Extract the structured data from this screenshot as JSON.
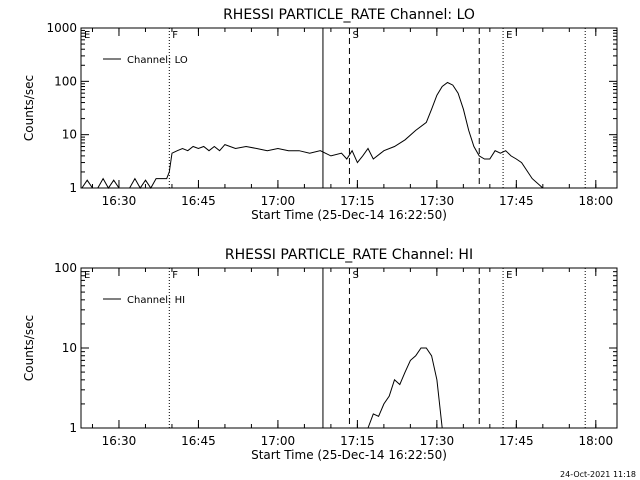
{
  "chart_data": [
    {
      "type": "line",
      "title": "RHESSI PARTICLE_RATE Channel: LO",
      "xlabel": "Start Time (25-Dec-14 16:22:50)",
      "ylabel": "Counts/sec",
      "yscale": "log",
      "ylim": [
        1,
        1000
      ],
      "xlim": [
        "16:22:50",
        "18:04:00"
      ],
      "xticks": [
        "16:30",
        "16:45",
        "17:00",
        "17:15",
        "17:30",
        "17:45",
        "18:00"
      ],
      "yticks": [
        "1",
        "10",
        "100",
        "1000"
      ],
      "legend": {
        "entries": [
          "Channel: LO"
        ],
        "placement": "top-left"
      },
      "markers": [
        {
          "label": "E",
          "time": "16:22:50",
          "style": "dotted"
        },
        {
          "label": "F",
          "time": "16:39:30",
          "style": "dotted"
        },
        {
          "label": "",
          "time": "17:08:30",
          "style": "solid"
        },
        {
          "label": "S",
          "time": "17:13:30",
          "style": "dashed"
        },
        {
          "label": "",
          "time": "17:38:00",
          "style": "dashed"
        },
        {
          "label": "E",
          "time": "17:42:30",
          "style": "dotted"
        },
        {
          "label": "",
          "time": "17:58:00",
          "style": "dotted"
        }
      ],
      "series": [
        {
          "name": "Channel: LO",
          "x": [
            "16:23:00",
            "16:24:00",
            "16:25:00",
            "16:26:00",
            "16:27:00",
            "16:28:00",
            "16:29:00",
            "16:30:00",
            "16:31:00",
            "16:32:00",
            "16:33:00",
            "16:34:00",
            "16:35:00",
            "16:36:00",
            "16:37:00",
            "16:38:00",
            "16:39:00",
            "16:39:30",
            "16:40:00",
            "16:41:00",
            "16:42:00",
            "16:43:00",
            "16:44:00",
            "16:45:00",
            "16:46:00",
            "16:47:00",
            "16:48:00",
            "16:49:00",
            "16:50:00",
            "16:52:00",
            "16:54:00",
            "16:56:00",
            "16:58:00",
            "17:00:00",
            "17:02:00",
            "17:04:00",
            "17:06:00",
            "17:08:00",
            "17:10:00",
            "17:12:00",
            "17:13:00",
            "17:14:00",
            "17:15:00",
            "17:16:00",
            "17:17:00",
            "17:18:00",
            "17:20:00",
            "17:22:00",
            "17:24:00",
            "17:26:00",
            "17:28:00",
            "17:29:00",
            "17:30:00",
            "17:31:00",
            "17:32:00",
            "17:33:00",
            "17:34:00",
            "17:35:00",
            "17:36:00",
            "17:37:00",
            "17:38:00",
            "17:39:00",
            "17:40:00",
            "17:41:00",
            "17:42:00",
            "17:43:00",
            "17:44:00",
            "17:45:00",
            "17:46:00",
            "17:48:00",
            "17:50:00",
            "17:52:00",
            "17:54:00",
            "17:56:00"
          ],
          "values": [
            1,
            1.4,
            1,
            1,
            1.5,
            1,
            1.4,
            1,
            1,
            1,
            1.5,
            1,
            1.4,
            1,
            1.5,
            1.5,
            1.5,
            2,
            4.5,
            5,
            5.5,
            5,
            6,
            5.5,
            6,
            5,
            6,
            5,
            6.5,
            5.5,
            6,
            5.5,
            5,
            5.5,
            5,
            5,
            4.5,
            5,
            4,
            4.5,
            3.5,
            5,
            3,
            4,
            5.5,
            3.5,
            5,
            6,
            8,
            12,
            17,
            30,
            55,
            80,
            95,
            85,
            60,
            30,
            12,
            6,
            4,
            3.5,
            3.5,
            5,
            4.5,
            5,
            4,
            3.5,
            3,
            1.5,
            1,
            1,
            1,
            1
          ]
        }
      ]
    },
    {
      "type": "line",
      "title": "RHESSI PARTICLE_RATE Channel: HI",
      "xlabel": "Start Time (25-Dec-14 16:22:50)",
      "ylabel": "Counts/sec",
      "yscale": "log",
      "ylim": [
        1,
        100
      ],
      "xlim": [
        "16:22:50",
        "18:04:00"
      ],
      "xticks": [
        "16:30",
        "16:45",
        "17:00",
        "17:15",
        "17:30",
        "17:45",
        "18:00"
      ],
      "yticks": [
        "1",
        "10",
        "100"
      ],
      "legend": {
        "entries": [
          "Channel: HI"
        ],
        "placement": "top-left"
      },
      "markers": [
        {
          "label": "E",
          "time": "16:22:50",
          "style": "dotted"
        },
        {
          "label": "F",
          "time": "16:39:30",
          "style": "dotted"
        },
        {
          "label": "",
          "time": "17:08:30",
          "style": "solid"
        },
        {
          "label": "S",
          "time": "17:13:30",
          "style": "dashed"
        },
        {
          "label": "",
          "time": "17:38:00",
          "style": "dashed"
        },
        {
          "label": "E",
          "time": "17:42:30",
          "style": "dotted"
        },
        {
          "label": "",
          "time": "17:58:00",
          "style": "dotted"
        }
      ],
      "series": [
        {
          "name": "Channel: HI",
          "x": [
            "17:17:00",
            "17:18:00",
            "17:19:00",
            "17:20:00",
            "17:21:00",
            "17:22:00",
            "17:23:00",
            "17:24:00",
            "17:25:00",
            "17:26:00",
            "17:27:00",
            "17:28:00",
            "17:29:00",
            "17:30:00",
            "17:31:00"
          ],
          "values": [
            1,
            1.5,
            1.4,
            2,
            2.5,
            4,
            3.5,
            5,
            7,
            8,
            10,
            10,
            8,
            4,
            1
          ]
        }
      ]
    }
  ],
  "footer": {
    "timestamp": "24-Oct-2021 11:18"
  }
}
